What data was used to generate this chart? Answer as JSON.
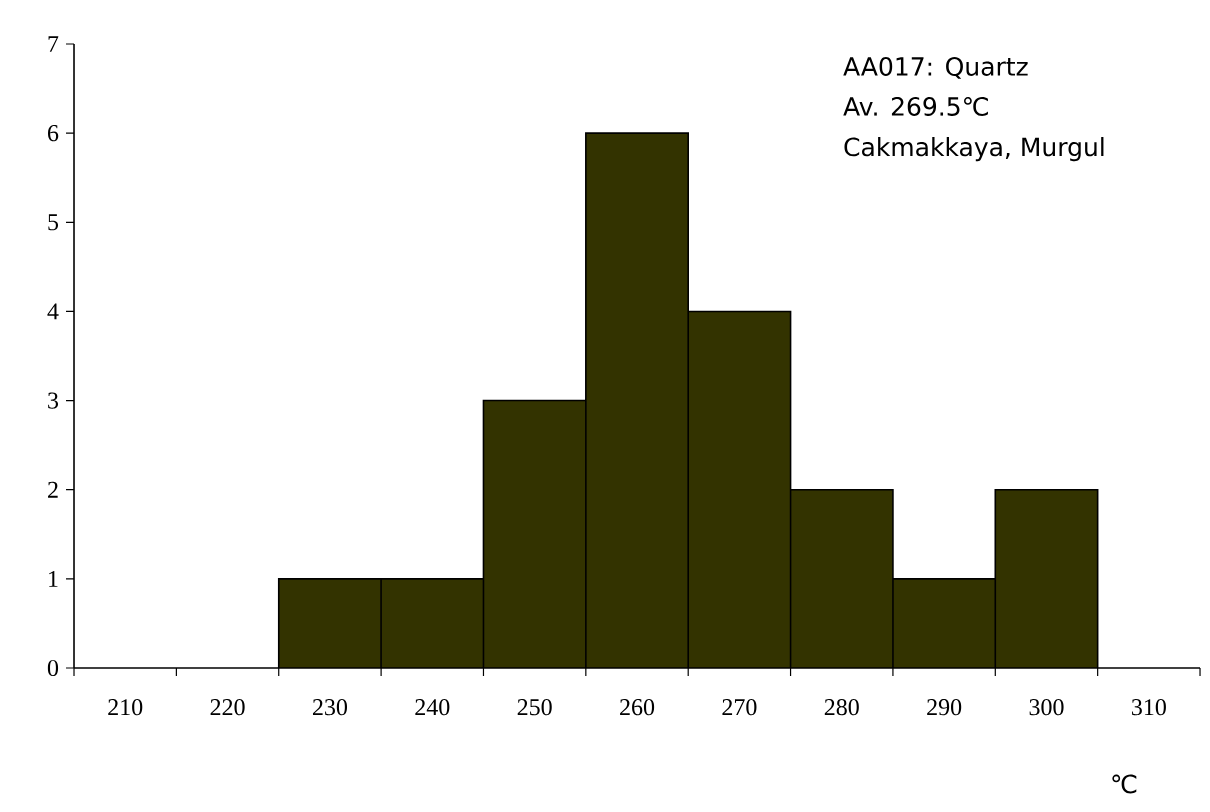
{
  "chart_data": {
    "type": "histogram",
    "bins": [
      225,
      235,
      245,
      255,
      265,
      275,
      285,
      295,
      305
    ],
    "values": [
      1,
      1,
      3,
      6,
      4,
      2,
      1,
      2
    ],
    "color": "#333300",
    "xlim": [
      205,
      315
    ],
    "ylim": [
      0,
      7
    ],
    "xticks": [
      {
        "value": 205,
        "label": null
      },
      {
        "value": 210,
        "label": "210"
      },
      {
        "value": 215,
        "label": null
      },
      {
        "value": 220,
        "label": "220"
      },
      {
        "value": 225,
        "label": null
      },
      {
        "value": 230,
        "label": "230"
      },
      {
        "value": 235,
        "label": null
      },
      {
        "value": 240,
        "label": "240"
      },
      {
        "value": 245,
        "label": null
      },
      {
        "value": 250,
        "label": "250"
      },
      {
        "value": 255,
        "label": null
      },
      {
        "value": 260,
        "label": "260"
      },
      {
        "value": 265,
        "label": null
      },
      {
        "value": 270,
        "label": "270"
      },
      {
        "value": 275,
        "label": null
      },
      {
        "value": 280,
        "label": "280"
      },
      {
        "value": 285,
        "label": null
      },
      {
        "value": 290,
        "label": "290"
      },
      {
        "value": 295,
        "label": null
      },
      {
        "value": 300,
        "label": "300"
      },
      {
        "value": 305,
        "label": null
      },
      {
        "value": 310,
        "label": "310"
      },
      {
        "value": 315,
        "label": null
      }
    ],
    "yticks": [
      0,
      1,
      2,
      3,
      4,
      5,
      6,
      7
    ],
    "xlabel": "℃",
    "annotations": [
      "AA017: Quartz",
      "Av. 269.5℃",
      "Cakmakkaya, Murgul"
    ]
  }
}
